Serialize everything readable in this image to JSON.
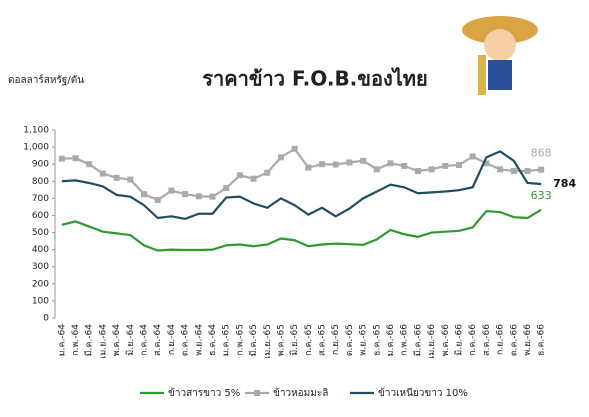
{
  "chart_data": {
    "type": "line",
    "title": "ราคาข้าว F.O.B.ของไทย",
    "y_label": "ดอลลาร์สหรัฐ/ตัน",
    "categories": [
      "ม.ค.-64",
      "ก.พ.-64",
      "มี.ค.-64",
      "เม.ย.-64",
      "พ.ค.-64",
      "มิ.ย.-64",
      "ก.ค.-64",
      "ส.ค.-64",
      "ก.ย.-64",
      "ต.ค.-64",
      "พ.ย.-64",
      "ธ.ค.-64",
      "ม.ค.-65",
      "ก.พ.-65",
      "มี.ค.-65",
      "เม.ย.-65",
      "พ.ค.-65",
      "มิ.ย.-65",
      "ก.ค.-65",
      "ส.ค.-65",
      "ก.ย.-65",
      "ต.ค.-65",
      "พ.ย.-65",
      "ธ.ค.-65",
      "ม.ค.-66",
      "ก.พ.-66",
      "มี.ค.-66",
      "เม.ย.-66",
      "พ.ค.-66",
      "มิ.ย.-66",
      "ก.ค.-66",
      "ส.ค.-66",
      "ก.ย.-66",
      "ต.ค.-66",
      "พ.ย.-66",
      "ธ.ค.-66"
    ],
    "series": [
      {
        "name": "ข้าวสารขาว 5%",
        "color": "#2e9a2e",
        "values": [
          545,
          565,
          535,
          505,
          495,
          485,
          425,
          395,
          400,
          398,
          398,
          400,
          425,
          430,
          420,
          430,
          465,
          455,
          420,
          430,
          435,
          432,
          428,
          460,
          515,
          490,
          475,
          500,
          505,
          510,
          530,
          625,
          620,
          590,
          585,
          633
        ]
      },
      {
        "name": "ข้าวหอมมะลิ",
        "color": "#a9aba4",
        "marker": "square",
        "values": [
          932,
          935,
          900,
          845,
          820,
          810,
          725,
          690,
          745,
          725,
          712,
          710,
          760,
          835,
          815,
          850,
          940,
          990,
          880,
          900,
          898,
          910,
          920,
          870,
          905,
          890,
          860,
          870,
          890,
          895,
          945,
          905,
          870,
          860,
          860,
          868
        ]
      },
      {
        "name": "ข้าวเหนียวขาว 10%",
        "color": "#1f4e63",
        "values": [
          800,
          805,
          790,
          770,
          720,
          710,
          660,
          585,
          595,
          580,
          610,
          610,
          705,
          710,
          670,
          645,
          700,
          660,
          605,
          645,
          595,
          640,
          700,
          740,
          780,
          765,
          730,
          735,
          740,
          748,
          765,
          940,
          975,
          920,
          790,
          784
        ]
      }
    ],
    "ylim": [
      0,
      1100
    ],
    "yticks": [
      0,
      100,
      200,
      300,
      400,
      500,
      600,
      700,
      800,
      900,
      {
        "value": 1000,
        "label": "1,000"
      },
      {
        "value": 1100,
        "label": "1,100"
      }
    ]
  }
}
